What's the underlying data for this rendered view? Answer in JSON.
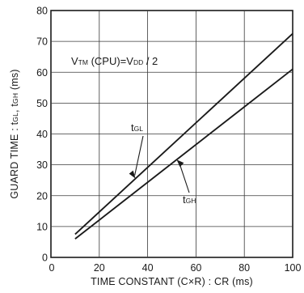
{
  "chart_data": {
    "type": "line",
    "xlabel": "TIME CONSTANT (C×R) : CR (ms)",
    "ylabel_parts": [
      {
        "t": "GUARD TIME : t",
        "sub": false
      },
      {
        "t": "GL",
        "sub": true
      },
      {
        "t": ",  t",
        "sub": false
      },
      {
        "t": "GH",
        "sub": true
      },
      {
        "t": " (ms)",
        "sub": false
      }
    ],
    "xlim": [
      0,
      100
    ],
    "ylim": [
      0,
      80
    ],
    "x_ticks": [
      0,
      20,
      40,
      60,
      80,
      100
    ],
    "y_ticks": [
      0,
      10,
      20,
      30,
      40,
      50,
      60,
      70,
      80
    ],
    "grid": true,
    "condition_parts": [
      {
        "t": "V",
        "sub": false
      },
      {
        "t": "TM",
        "sub": true
      },
      {
        "t": " (CPU)=V",
        "sub": false
      },
      {
        "t": "DD",
        "sub": true
      },
      {
        "t": " / 2",
        "sub": false
      }
    ],
    "series": [
      {
        "label_main": "t",
        "label_sub": "GL",
        "x": [
          10,
          100
        ],
        "y": [
          7.5,
          72.5
        ]
      },
      {
        "label_main": "t",
        "label_sub": "GH",
        "x": [
          10,
          100
        ],
        "y": [
          6,
          61
        ]
      }
    ]
  }
}
